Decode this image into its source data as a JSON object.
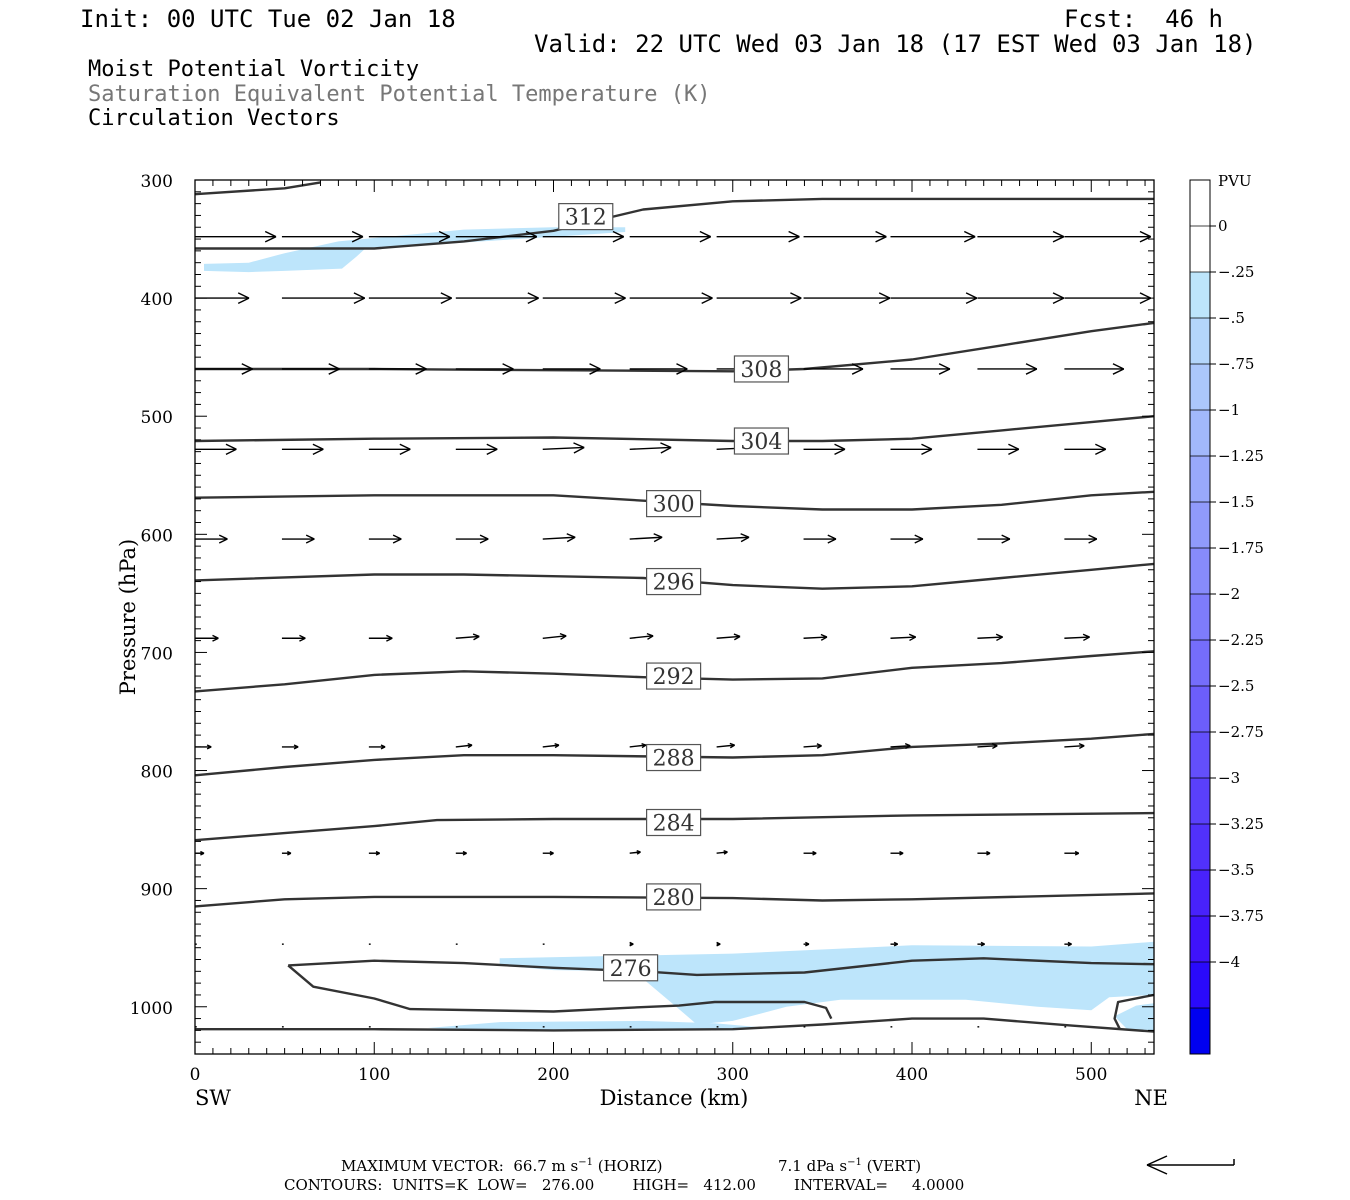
{
  "header": {
    "init": "Init: 00 UTC Tue 02 Jan 18",
    "fcst": "Fcst:  46 h",
    "valid": "Valid: 22 UTC Wed 03 Jan 18 (17 EST Wed 03 Jan 18)"
  },
  "titles": {
    "line1": "Moist Potential Vorticity",
    "line2": "Saturation Equivalent Potential Temperature (K)",
    "line3": "Circulation Vectors"
  },
  "footer": {
    "max_vector_prefix": "MAXIMUM VECTOR:  66.7 m s",
    "max_vector_horiz": " (HORIZ)",
    "max_vector_vert_prefix": "7.1 dPa s",
    "max_vector_vert": " (VERT)",
    "exp": "−1",
    "contours": "CONTOURS:  UNITS=K  LOW=   276.00        HIGH=   412.00        INTERVAL=     4.0000"
  },
  "colors": {
    "shade": "#bde5fb",
    "contour": "#333333",
    "colorbar": [
      "#ffffff",
      "#ffffff",
      "#bde5fb",
      "#b4d6fb",
      "#abc7fb",
      "#a2b8fb",
      "#99a9fb",
      "#909afb",
      "#878bfb",
      "#7e7cfb",
      "#756dfb",
      "#6c5efb",
      "#634ffb",
      "#5a40fb",
      "#5131fb",
      "#4822fb",
      "#3f13fb",
      "#2a0afb",
      "#0000f0"
    ]
  },
  "chart_data": {
    "type": "cross-section",
    "xlabel": "Distance (km)",
    "ylabel": "Pressure (hPa)",
    "x_ticks": [
      0,
      100,
      200,
      300,
      400,
      500
    ],
    "y_ticks": [
      300,
      400,
      500,
      600,
      700,
      800,
      900,
      1000
    ],
    "xlim": [
      0,
      535
    ],
    "ylim": [
      300,
      1040
    ],
    "y_reversed": true,
    "end_labels": {
      "left": "SW",
      "right": "NE"
    },
    "colorbar": {
      "title": "PVU",
      "labels": [
        "0",
        "-.25",
        "-.5",
        "-.75",
        "-1",
        "-1.25",
        "-1.5",
        "-1.75",
        "-2",
        "-2.25",
        "-2.5",
        "-2.75",
        "-3",
        "-3.25",
        "-3.5",
        "-3.75",
        "-4"
      ]
    },
    "contours": [
      {
        "label": "312",
        "label_at": [
          218,
          331
        ],
        "points": [
          [
            0,
            312
          ],
          [
            50,
            307
          ],
          [
            70,
            302
          ]
        ]
      },
      {
        "label": "312",
        "label_at": [
          218,
          331
        ],
        "points": [
          [
            0,
            358
          ],
          [
            100,
            358
          ],
          [
            150,
            352
          ],
          [
            200,
            343
          ],
          [
            250,
            325
          ],
          [
            300,
            318
          ],
          [
            350,
            316
          ],
          [
            400,
            316
          ],
          [
            535,
            316
          ]
        ]
      },
      {
        "label": "308",
        "label_at": [
          316,
          460
        ],
        "points": [
          [
            0,
            460
          ],
          [
            100,
            460
          ],
          [
            200,
            461
          ],
          [
            300,
            462
          ],
          [
            340,
            460
          ],
          [
            400,
            452
          ],
          [
            450,
            440
          ],
          [
            500,
            428
          ],
          [
            535,
            421
          ]
        ]
      },
      {
        "label": "304",
        "label_at": [
          316,
          521
        ],
        "points": [
          [
            0,
            521
          ],
          [
            100,
            519
          ],
          [
            200,
            518
          ],
          [
            300,
            521
          ],
          [
            350,
            521
          ],
          [
            400,
            519
          ],
          [
            450,
            512
          ],
          [
            500,
            505
          ],
          [
            535,
            500
          ]
        ]
      },
      {
        "label": "300",
        "label_at": [
          267,
          574
        ],
        "points": [
          [
            0,
            569
          ],
          [
            100,
            567
          ],
          [
            200,
            567
          ],
          [
            300,
            576
          ],
          [
            350,
            579
          ],
          [
            400,
            579
          ],
          [
            450,
            575
          ],
          [
            500,
            567
          ],
          [
            535,
            564
          ]
        ]
      },
      {
        "label": "296",
        "label_at": [
          267,
          640
        ],
        "points": [
          [
            0,
            639
          ],
          [
            100,
            634
          ],
          [
            150,
            634
          ],
          [
            250,
            637
          ],
          [
            300,
            643
          ],
          [
            350,
            646
          ],
          [
            400,
            644
          ],
          [
            450,
            637
          ],
          [
            500,
            630
          ],
          [
            535,
            625
          ]
        ]
      },
      {
        "label": "292",
        "label_at": [
          267,
          720
        ],
        "points": [
          [
            0,
            733
          ],
          [
            50,
            727
          ],
          [
            100,
            719
          ],
          [
            150,
            716
          ],
          [
            200,
            718
          ],
          [
            250,
            721
          ],
          [
            300,
            723
          ],
          [
            350,
            722
          ],
          [
            400,
            713
          ],
          [
            450,
            709
          ],
          [
            500,
            703
          ],
          [
            535,
            699
          ]
        ]
      },
      {
        "label": "288",
        "label_at": [
          267,
          789
        ],
        "points": [
          [
            0,
            804
          ],
          [
            50,
            797
          ],
          [
            100,
            791
          ],
          [
            150,
            787
          ],
          [
            200,
            787
          ],
          [
            300,
            789
          ],
          [
            350,
            787
          ],
          [
            400,
            780
          ],
          [
            450,
            777
          ],
          [
            500,
            773
          ],
          [
            535,
            769
          ]
        ]
      },
      {
        "label": "284",
        "label_at": [
          267,
          844
        ],
        "points": [
          [
            0,
            859
          ],
          [
            50,
            853
          ],
          [
            100,
            847
          ],
          [
            135,
            842
          ],
          [
            200,
            841
          ],
          [
            300,
            841
          ],
          [
            400,
            838
          ],
          [
            535,
            836
          ]
        ]
      },
      {
        "label": "280",
        "label_at": [
          267,
          907
        ],
        "points": [
          [
            0,
            915
          ],
          [
            50,
            909
          ],
          [
            100,
            907
          ],
          [
            200,
            907
          ],
          [
            300,
            908
          ],
          [
            350,
            910
          ],
          [
            400,
            909
          ],
          [
            535,
            904
          ]
        ]
      },
      {
        "label": "276",
        "label_at": [
          243,
          967
        ],
        "points": [
          [
            52,
            965
          ],
          [
            100,
            961
          ],
          [
            150,
            963
          ],
          [
            200,
            967
          ],
          [
            250,
            970
          ],
          [
            280,
            973
          ],
          [
            340,
            971
          ],
          [
            400,
            961
          ],
          [
            440,
            959
          ],
          [
            500,
            963
          ],
          [
            535,
            964
          ]
        ]
      },
      {
        "label": "",
        "points": [
          [
            52,
            965
          ],
          [
            66,
            983
          ],
          [
            100,
            993
          ],
          [
            120,
            1002
          ],
          [
            200,
            1004
          ],
          [
            240,
            1001
          ],
          [
            270,
            999
          ],
          [
            290,
            996
          ],
          [
            340,
            996
          ],
          [
            352,
            1001
          ],
          [
            355,
            1010
          ]
        ]
      },
      {
        "label": "",
        "points": [
          [
            0,
            1019
          ],
          [
            100,
            1019
          ],
          [
            200,
            1020
          ],
          [
            300,
            1019
          ],
          [
            350,
            1015
          ],
          [
            400,
            1010
          ],
          [
            440,
            1010
          ],
          [
            490,
            1016
          ],
          [
            535,
            1021
          ]
        ]
      },
      {
        "label": "",
        "points": [
          [
            535,
            990
          ],
          [
            515,
            996
          ],
          [
            513,
            1010
          ],
          [
            516,
            1019
          ]
        ]
      }
    ],
    "shaded_regions": [
      {
        "min_pvu": -0.5,
        "max_pvu": -0.25,
        "polygon": [
          [
            5,
            371
          ],
          [
            30,
            370
          ],
          [
            50,
            362
          ],
          [
            80,
            352
          ],
          [
            150,
            342
          ],
          [
            200,
            340
          ],
          [
            240,
            340
          ],
          [
            240,
            344
          ],
          [
            200,
            348
          ],
          [
            120,
            356
          ],
          [
            95,
            358
          ],
          [
            90,
            365
          ],
          [
            82,
            375
          ],
          [
            50,
            377
          ],
          [
            30,
            378
          ],
          [
            5,
            377
          ]
        ]
      },
      {
        "min_pvu": -0.5,
        "max_pvu": -0.25,
        "polygon": [
          [
            170,
            959
          ],
          [
            300,
            955
          ],
          [
            400,
            948
          ],
          [
            500,
            949
          ],
          [
            535,
            945
          ],
          [
            535,
            990
          ],
          [
            510,
            992
          ],
          [
            500,
            1003
          ],
          [
            470,
            1000
          ],
          [
            430,
            994
          ],
          [
            400,
            994
          ],
          [
            360,
            994
          ],
          [
            330,
            1000
          ],
          [
            300,
            1012
          ],
          [
            280,
            1015
          ],
          [
            270,
            1002
          ],
          [
            245,
            970
          ],
          [
            200,
            969
          ],
          [
            170,
            965
          ]
        ]
      },
      {
        "min_pvu": -0.5,
        "max_pvu": -0.25,
        "polygon": [
          [
            130,
            1018
          ],
          [
            170,
            1013
          ],
          [
            250,
            1012
          ],
          [
            290,
            1014
          ],
          [
            320,
            1018
          ],
          [
            300,
            1020
          ],
          [
            170,
            1020
          ]
        ]
      },
      {
        "min_pvu": -0.5,
        "max_pvu": -0.25,
        "polygon": [
          [
            513,
            1008
          ],
          [
            525,
            999
          ],
          [
            535,
            997
          ],
          [
            535,
            1020
          ],
          [
            520,
            1019
          ]
        ]
      }
    ],
    "vector_x": [
      0,
      48.5,
      97,
      145.5,
      194,
      242.5,
      291,
      339.5,
      388,
      436.5,
      485
    ],
    "vector_rows": [
      {
        "p": 348,
        "u": [
          45,
          45,
          45,
          45,
          45,
          45,
          46,
          46,
          47,
          48,
          48
        ],
        "w": [
          0,
          0,
          0,
          0,
          0,
          0,
          0,
          0,
          0,
          0,
          0
        ]
      },
      {
        "p": 400,
        "u": [
          30,
          46,
          46,
          46,
          46,
          46,
          47,
          48,
          48,
          48,
          48
        ],
        "w": [
          0,
          0,
          0,
          0,
          0,
          0,
          0,
          0,
          0,
          0,
          0
        ]
      },
      {
        "p": 460,
        "u": [
          32,
          32,
          32,
          32,
          32,
          32,
          33,
          33,
          33,
          33,
          33
        ],
        "w": [
          0,
          0,
          0,
          0,
          0,
          0,
          0,
          0,
          0,
          0,
          0
        ]
      },
      {
        "p": 528,
        "u": [
          23,
          23,
          23,
          23,
          23,
          23,
          23,
          23,
          23,
          23,
          23
        ],
        "w": [
          0,
          0,
          0,
          0,
          0.3,
          0.3,
          0.3,
          0,
          0,
          0,
          0
        ]
      },
      {
        "p": 604,
        "u": [
          18,
          18,
          18,
          18,
          18,
          18,
          18,
          18,
          18,
          18,
          18
        ],
        "w": [
          0,
          0,
          0,
          0,
          0.3,
          0.3,
          0.3,
          0,
          0,
          0,
          0
        ]
      },
      {
        "p": 688,
        "u": [
          13,
          13,
          13,
          13,
          13,
          13,
          13,
          13,
          14,
          14,
          14
        ],
        "w": [
          0,
          0,
          0,
          0.3,
          0.4,
          0.4,
          0.3,
          0.2,
          0.2,
          0.2,
          0.2
        ]
      },
      {
        "p": 780,
        "u": [
          9,
          9,
          9,
          9,
          9,
          9,
          10,
          10,
          11,
          11,
          11
        ],
        "w": [
          0,
          0,
          0,
          0.3,
          0.3,
          0.3,
          0.3,
          0.2,
          0.2,
          0.2,
          0.2
        ]
      },
      {
        "p": 870,
        "u": [
          5,
          5,
          6,
          6,
          6,
          6,
          6,
          7,
          7,
          7,
          8
        ],
        "w": [
          0,
          0,
          0,
          0,
          0,
          0.2,
          0.2,
          0,
          0,
          0,
          0
        ]
      },
      {
        "p": 947,
        "u": [
          1,
          1,
          1,
          1,
          1,
          2,
          2,
          3,
          4,
          4,
          4
        ],
        "w": [
          0,
          0,
          0,
          0,
          0,
          0,
          0,
          0,
          0,
          0,
          0
        ]
      },
      {
        "p": 1017,
        "u": [
          1,
          1,
          1,
          1,
          1,
          1,
          1,
          1,
          1,
          1,
          1
        ],
        "w": [
          0,
          0,
          0,
          0,
          0,
          0,
          0,
          0,
          0,
          0,
          0
        ]
      }
    ]
  }
}
